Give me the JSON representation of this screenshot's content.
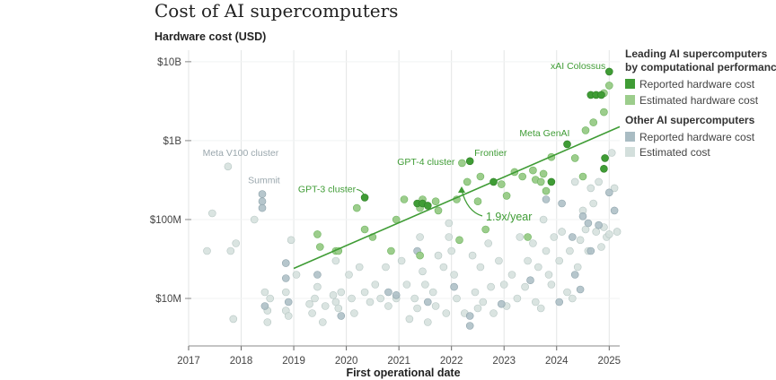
{
  "chart_data": {
    "type": "scatter",
    "title": "Cost of AI supercomputers",
    "ylabel": "Hardware cost (USD)",
    "xlabel": "First operational date",
    "y_scale": "log",
    "ylim": [
      2500000,
      14000000000
    ],
    "xlim": [
      2017.0,
      2025.2
    ],
    "y_ticks": [
      {
        "value": 10000000000,
        "label": "$10B"
      },
      {
        "value": 1000000000,
        "label": "$1B"
      },
      {
        "value": 100000000,
        "label": "$100M"
      },
      {
        "value": 10000000,
        "label": "$10M"
      }
    ],
    "x_ticks": [
      {
        "value": 2017,
        "label": "2017"
      },
      {
        "value": 2018,
        "label": "2018"
      },
      {
        "value": 2019,
        "label": "2019"
      },
      {
        "value": 2020,
        "label": "2020"
      },
      {
        "value": 2021,
        "label": "2021"
      },
      {
        "value": 2022,
        "label": "2022"
      },
      {
        "value": 2023,
        "label": "2023"
      },
      {
        "value": 2024,
        "label": "2024"
      },
      {
        "value": 2025,
        "label": "2025"
      }
    ],
    "grid": true,
    "legend_position": "right",
    "legend": {
      "group1_title_line1": "Leading AI supercomputers",
      "group1_title_line2": "by computational performance",
      "group1_item1": "Reported hardware cost",
      "group1_item2": "Estimated hardware cost",
      "group2_title": "Other AI supercomputers",
      "group2_item1": "Reported hardware cost",
      "group2_item2": "Estimated cost"
    },
    "colors": {
      "leading_reported": "#3f9c35",
      "leading_estimated": "#9ccd8c",
      "other_reported": "#a9bcc3",
      "other_estimated": "#d3dfdc",
      "trend": "#3f9c35",
      "grid": "#e3e6e6"
    },
    "trend": {
      "label": "1.9x/year",
      "start": [
        2019.0,
        24000000
      ],
      "end": [
        2025.2,
        1500000000
      ]
    },
    "annotations": [
      {
        "label": "xAI Colossus",
        "x": 2025.0,
        "y": 7500000000,
        "group": "leading"
      },
      {
        "label": "Meta GenAI",
        "x": 2024.2,
        "y": 900000000,
        "group": "leading"
      },
      {
        "label": "Frontier",
        "x": 2022.35,
        "y": 550000000,
        "group": "leading"
      },
      {
        "label": "GPT-4 cluster",
        "x": 2022.2,
        "y": 520000000,
        "group": "leading"
      },
      {
        "label": "GPT-3 cluster",
        "x": 2020.35,
        "y": 190000000,
        "group": "leading"
      },
      {
        "label": "Meta V100 cluster",
        "x": 2017.75,
        "y": 470000000,
        "group": "other"
      },
      {
        "label": "Summit",
        "x": 2018.4,
        "y": 210000000,
        "group": "other"
      }
    ],
    "series": [
      {
        "name": "Leading AI supercomputers — Reported hardware cost",
        "points": [
          [
            2020.35,
            190000000
          ],
          [
            2021.35,
            160000000
          ],
          [
            2021.45,
            160000000
          ],
          [
            2021.55,
            150000000
          ],
          [
            2022.35,
            550000000
          ],
          [
            2022.8,
            300000000
          ],
          [
            2023.9,
            300000000
          ],
          [
            2024.2,
            900000000
          ],
          [
            2024.65,
            3800000000
          ],
          [
            2024.75,
            3800000000
          ],
          [
            2024.85,
            3800000000
          ],
          [
            2024.92,
            600000000
          ],
          [
            2024.9,
            440000000
          ],
          [
            2025.0,
            7500000000
          ]
        ]
      },
      {
        "name": "Leading AI supercomputers — Estimated hardware cost",
        "points": [
          [
            2019.45,
            65000000
          ],
          [
            2019.5,
            45000000
          ],
          [
            2019.8,
            40000000
          ],
          [
            2019.85,
            40000000
          ],
          [
            2020.2,
            140000000
          ],
          [
            2020.35,
            75000000
          ],
          [
            2020.5,
            60000000
          ],
          [
            2020.85,
            40000000
          ],
          [
            2020.95,
            100000000
          ],
          [
            2021.1,
            180000000
          ],
          [
            2021.4,
            140000000
          ],
          [
            2021.45,
            180000000
          ],
          [
            2021.4,
            35000000
          ],
          [
            2021.7,
            170000000
          ],
          [
            2021.75,
            130000000
          ],
          [
            2022.1,
            180000000
          ],
          [
            2022.15,
            55000000
          ],
          [
            2022.2,
            520000000
          ],
          [
            2022.3,
            300000000
          ],
          [
            2022.5,
            170000000
          ],
          [
            2022.55,
            350000000
          ],
          [
            2022.65,
            75000000
          ],
          [
            2022.95,
            280000000
          ],
          [
            2023.05,
            200000000
          ],
          [
            2023.2,
            400000000
          ],
          [
            2023.35,
            350000000
          ],
          [
            2023.45,
            60000000
          ],
          [
            2023.55,
            420000000
          ],
          [
            2023.6,
            320000000
          ],
          [
            2023.7,
            300000000
          ],
          [
            2023.75,
            380000000
          ],
          [
            2023.8,
            230000000
          ],
          [
            2023.9,
            620000000
          ],
          [
            2024.35,
            600000000
          ],
          [
            2024.5,
            350000000
          ],
          [
            2024.55,
            1350000000
          ],
          [
            2024.7,
            1700000000
          ],
          [
            2024.9,
            2300000000
          ],
          [
            2024.9,
            4000000000
          ],
          [
            2025.0,
            5000000000
          ]
        ]
      },
      {
        "name": "Other AI supercomputers — Reported hardware cost",
        "points": [
          [
            2018.4,
            210000000
          ],
          [
            2018.4,
            170000000
          ],
          [
            2018.4,
            140000000
          ],
          [
            2018.45,
            8000000
          ],
          [
            2018.85,
            28000000
          ],
          [
            2018.85,
            18000000
          ],
          [
            2018.9,
            9000000
          ],
          [
            2019.45,
            20000000
          ],
          [
            2019.9,
            6000000
          ],
          [
            2020.8,
            12000000
          ],
          [
            2020.95,
            11000000
          ],
          [
            2021.35,
            40000000
          ],
          [
            2021.55,
            9000000
          ],
          [
            2022.05,
            14000000
          ],
          [
            2022.35,
            6000000
          ],
          [
            2022.35,
            4500000
          ],
          [
            2022.95,
            8500000
          ],
          [
            2023.5,
            17000000
          ],
          [
            2023.8,
            180000000
          ],
          [
            2024.05,
            9000000
          ],
          [
            2024.1,
            160000000
          ],
          [
            2024.3,
            60000000
          ],
          [
            2024.35,
            20000000
          ],
          [
            2024.45,
            13000000
          ],
          [
            2024.5,
            110000000
          ],
          [
            2024.6,
            90000000
          ],
          [
            2024.65,
            40000000
          ],
          [
            2024.8,
            85000000
          ],
          [
            2025.0,
            220000000
          ],
          [
            2025.1,
            130000000
          ]
        ]
      },
      {
        "name": "Other AI supercomputers — Estimated cost",
        "points": [
          [
            2017.45,
            120000000
          ],
          [
            2017.35,
            40000000
          ],
          [
            2017.75,
            470000000
          ],
          [
            2017.9,
            50000000
          ],
          [
            2017.8,
            40000000
          ],
          [
            2017.85,
            5500000
          ],
          [
            2018.25,
            100000000
          ],
          [
            2018.45,
            12000000
          ],
          [
            2018.5,
            7000000
          ],
          [
            2018.5,
            5000000
          ],
          [
            2018.55,
            10000000
          ],
          [
            2018.85,
            12000000
          ],
          [
            2018.85,
            7000000
          ],
          [
            2018.9,
            6000000
          ],
          [
            2018.95,
            55000000
          ],
          [
            2019.05,
            20000000
          ],
          [
            2019.3,
            8500000
          ],
          [
            2019.35,
            6500000
          ],
          [
            2019.4,
            10000000
          ],
          [
            2019.45,
            14000000
          ],
          [
            2019.55,
            5000000
          ],
          [
            2019.6,
            8000000
          ],
          [
            2019.75,
            11000000
          ],
          [
            2019.8,
            9000000
          ],
          [
            2019.85,
            7500000
          ],
          [
            2019.8,
            30000000
          ],
          [
            2019.9,
            12000000
          ],
          [
            2020.05,
            20000000
          ],
          [
            2020.1,
            10000000
          ],
          [
            2020.15,
            6500000
          ],
          [
            2020.25,
            25000000
          ],
          [
            2020.35,
            12000000
          ],
          [
            2020.45,
            9000000
          ],
          [
            2020.55,
            15000000
          ],
          [
            2020.65,
            10000000
          ],
          [
            2020.75,
            25000000
          ],
          [
            2020.8,
            8000000
          ],
          [
            2020.95,
            10000000
          ],
          [
            2021.05,
            30000000
          ],
          [
            2021.15,
            15000000
          ],
          [
            2021.2,
            5500000
          ],
          [
            2021.3,
            10000000
          ],
          [
            2021.35,
            7500000
          ],
          [
            2021.4,
            60000000
          ],
          [
            2021.45,
            22000000
          ],
          [
            2021.5,
            15000000
          ],
          [
            2021.55,
            5000000
          ],
          [
            2021.65,
            12000000
          ],
          [
            2021.7,
            8000000
          ],
          [
            2021.75,
            35000000
          ],
          [
            2021.85,
            25000000
          ],
          [
            2021.9,
            6500000
          ],
          [
            2021.95,
            90000000
          ],
          [
            2021.95,
            60000000
          ],
          [
            2022.0,
            40000000
          ],
          [
            2022.05,
            20000000
          ],
          [
            2022.1,
            10000000
          ],
          [
            2022.25,
            6500000
          ],
          [
            2022.4,
            35000000
          ],
          [
            2022.45,
            12000000
          ],
          [
            2022.5,
            7500000
          ],
          [
            2022.55,
            25000000
          ],
          [
            2022.6,
            9000000
          ],
          [
            2022.7,
            50000000
          ],
          [
            2022.75,
            14000000
          ],
          [
            2022.8,
            6500000
          ],
          [
            2022.9,
            30000000
          ],
          [
            2023.0,
            15000000
          ],
          [
            2023.05,
            8000000
          ],
          [
            2023.15,
            20000000
          ],
          [
            2023.25,
            10000000
          ],
          [
            2023.3,
            60000000
          ],
          [
            2023.4,
            14000000
          ],
          [
            2023.45,
            30000000
          ],
          [
            2023.55,
            50000000
          ],
          [
            2023.6,
            9000000
          ],
          [
            2023.65,
            25000000
          ],
          [
            2023.7,
            7500000
          ],
          [
            2023.75,
            100000000
          ],
          [
            2023.8,
            40000000
          ],
          [
            2023.85,
            20000000
          ],
          [
            2023.9,
            15000000
          ],
          [
            2023.95,
            60000000
          ],
          [
            2024.05,
            30000000
          ],
          [
            2024.1,
            70000000
          ],
          [
            2024.2,
            12000000
          ],
          [
            2024.25,
            40000000
          ],
          [
            2024.3,
            10000000
          ],
          [
            2024.35,
            300000000
          ],
          [
            2024.4,
            25000000
          ],
          [
            2024.45,
            55000000
          ],
          [
            2024.5,
            130000000
          ],
          [
            2024.55,
            75000000
          ],
          [
            2024.6,
            40000000
          ],
          [
            2024.65,
            250000000
          ],
          [
            2024.7,
            160000000
          ],
          [
            2024.75,
            70000000
          ],
          [
            2024.8,
            300000000
          ],
          [
            2024.85,
            45000000
          ],
          [
            2024.9,
            80000000
          ],
          [
            2024.95,
            60000000
          ],
          [
            2025.0,
            65000000
          ],
          [
            2025.05,
            700000000
          ],
          [
            2025.1,
            250000000
          ],
          [
            2025.15,
            70000000
          ]
        ]
      }
    ]
  }
}
